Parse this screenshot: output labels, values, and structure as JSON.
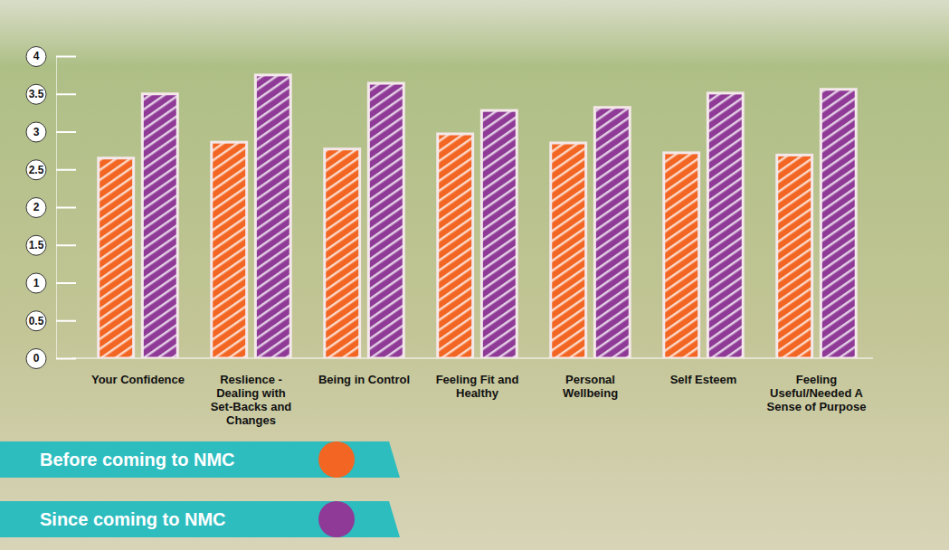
{
  "chart_data": {
    "type": "bar",
    "categories": [
      "Your Confidence",
      "Reslience - Dealing with Set-Backs and Changes",
      "Being in Control",
      "Feeling Fit and Healthy",
      "Personal Wellbeing",
      "Self Esteem",
      "Feeling Useful/Needed A Sense of Purpose"
    ],
    "series": [
      {
        "name": "Before coming to NMC",
        "color": "#f26522",
        "values": [
          2.65,
          2.86,
          2.77,
          2.97,
          2.85,
          2.72,
          2.69
        ]
      },
      {
        "name": "Since coming to NMC",
        "color": "#8e3a96",
        "values": [
          3.5,
          3.75,
          3.64,
          3.28,
          3.32,
          3.51,
          3.56
        ]
      }
    ],
    "ylim": [
      0,
      4
    ],
    "yticks": [
      0,
      0.5,
      1,
      1.5,
      2,
      2.5,
      3,
      3.5,
      4
    ],
    "grid": false,
    "legend": "bottom-left"
  }
}
